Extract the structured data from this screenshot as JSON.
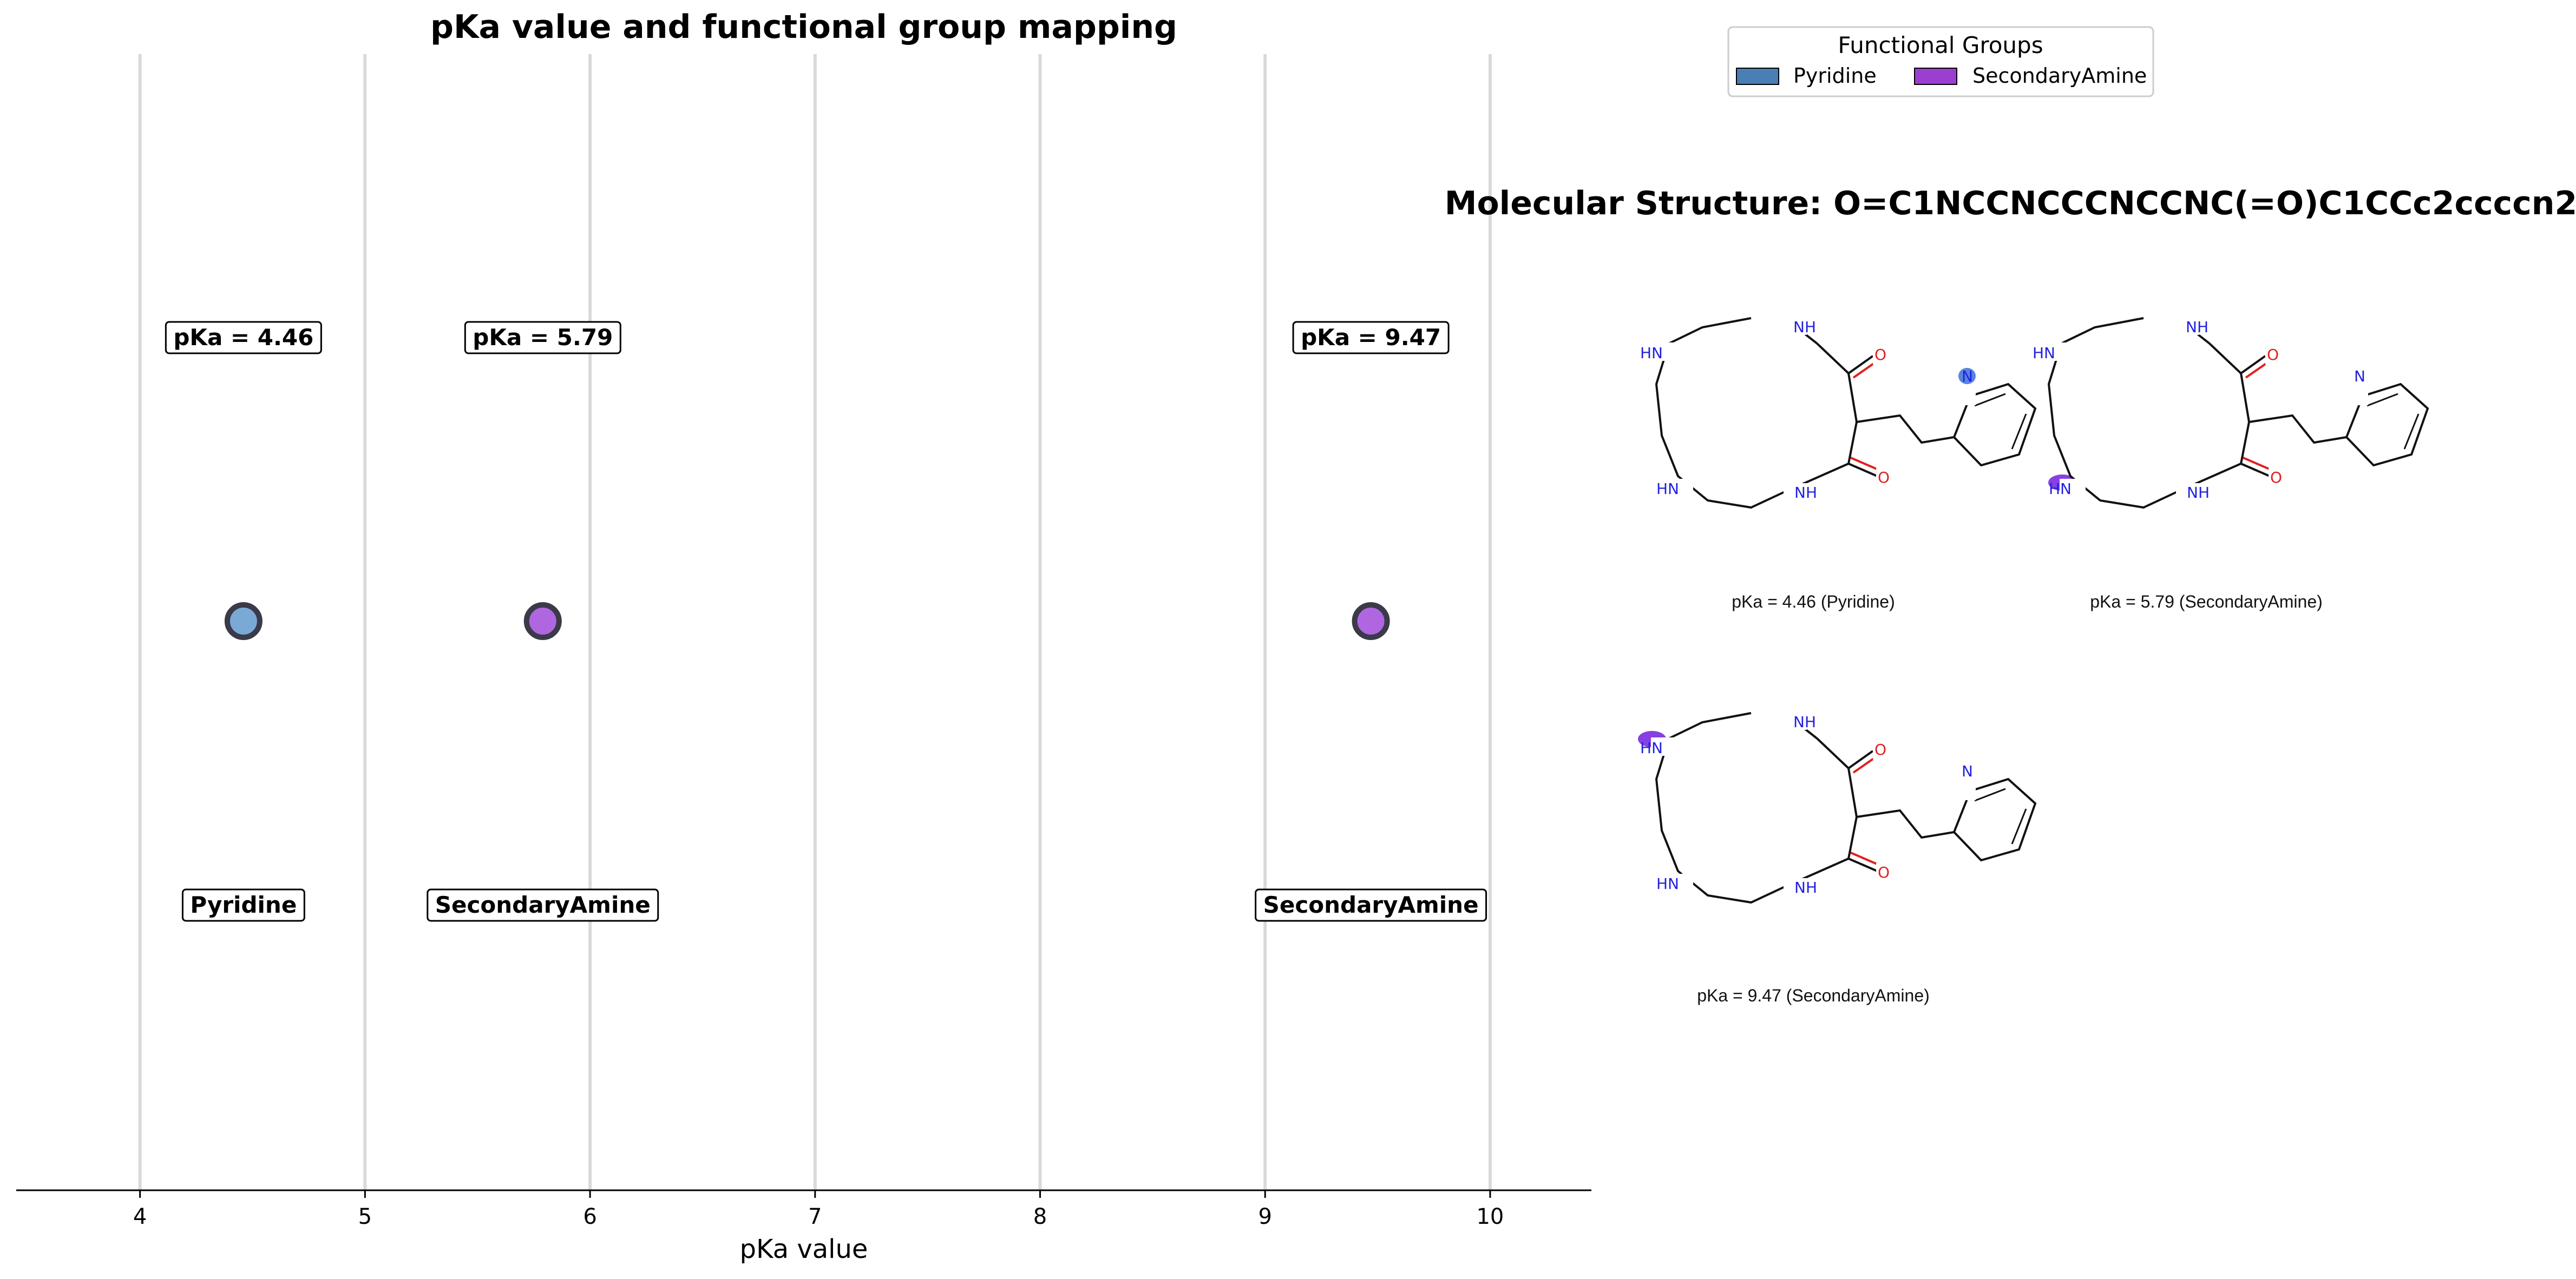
{
  "chart_data": {
    "type": "scatter",
    "title": "pKa value and functional group mapping",
    "xlabel": "pKa value",
    "xlim": [
      3.45,
      10.45
    ],
    "xticks": [
      4,
      5,
      6,
      7,
      8,
      9,
      10
    ],
    "grid": "vertical",
    "points": [
      {
        "x": 4.46,
        "group": "Pyridine",
        "value_label": "pKa = 4.46",
        "group_label": "Pyridine"
      },
      {
        "x": 5.79,
        "group": "SecondaryAmine",
        "value_label": "pKa = 5.79",
        "group_label": "SecondaryAmine"
      },
      {
        "x": 9.47,
        "group": "SecondaryAmine",
        "value_label": "pKa = 9.47",
        "group_label": "SecondaryAmine"
      }
    ],
    "legend": {
      "title": "Functional Groups",
      "placement": "top-right",
      "items": [
        {
          "label": "Pyridine",
          "color": "#4a7fb5"
        },
        {
          "label": "SecondaryAmine",
          "color": "#9b3fd1"
        }
      ]
    },
    "colors": {
      "Pyridine": "#7aa9d6",
      "SecondaryAmine": "#b066e0"
    }
  },
  "molecule": {
    "title": "Molecular Structure: O=C1NCCNCCCNCCNC(=O)C1CCc2ccccn2",
    "atom_labels": {
      "amine": "HN",
      "amide": "NH",
      "pyridine_n": "N",
      "oxygen": "O"
    },
    "panels": [
      {
        "caption": "pKa = 4.46 (Pyridine)",
        "highlight": "pyridine",
        "highlight_color": "#3a6fd8"
      },
      {
        "caption": "pKa = 5.79 (SecondaryAmine)",
        "highlight": "amine-bottom",
        "highlight_color": "#7a2be0"
      },
      {
        "caption": "pKa = 9.47 (SecondaryAmine)",
        "highlight": "amine-top",
        "highlight_color": "#7a2be0"
      }
    ]
  }
}
